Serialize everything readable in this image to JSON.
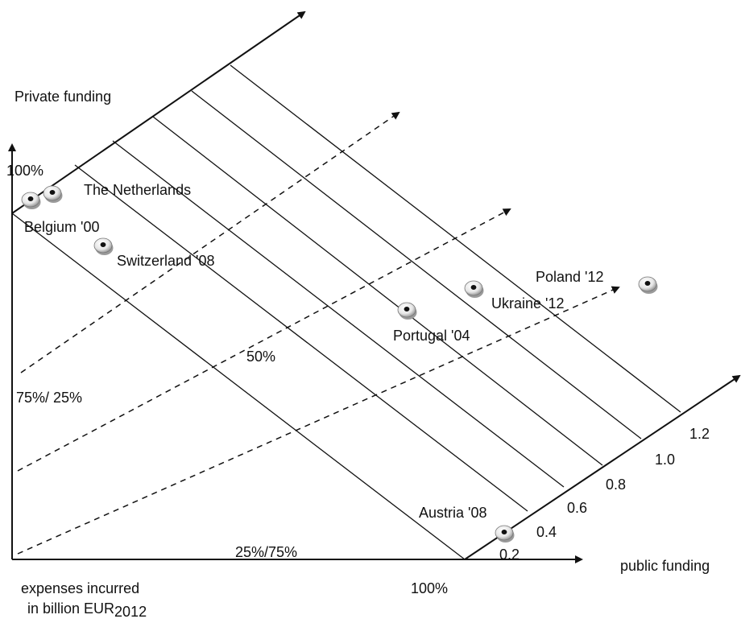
{
  "labels": {
    "private_funding": "Private funding",
    "public_funding": "public funding",
    "private_100": "100%",
    "public_100": "100%",
    "ratio_75_25": "75%/ 25%",
    "ratio_50": "50%",
    "ratio_25_75": "25%/75%",
    "expenses_line1": "expenses incurred",
    "expenses_line2": "in billion EUR",
    "expenses_sub": "2012"
  },
  "expense_scale": [
    "0.2",
    "0.4",
    "0.6",
    "0.8",
    "1.0",
    "1.2"
  ],
  "countries": [
    {
      "name": "The Netherlands"
    },
    {
      "name": "Belgium '00"
    },
    {
      "name": "Switzerland '08"
    },
    {
      "name": "Portugal '04"
    },
    {
      "name": "Ukraine '12"
    },
    {
      "name": "Poland '12"
    },
    {
      "name": "Austria '08"
    }
  ],
  "colors": {
    "ink": "#111111",
    "marker_shadow": "#9a9a9a",
    "marker_face": "#f2f2f2"
  }
}
